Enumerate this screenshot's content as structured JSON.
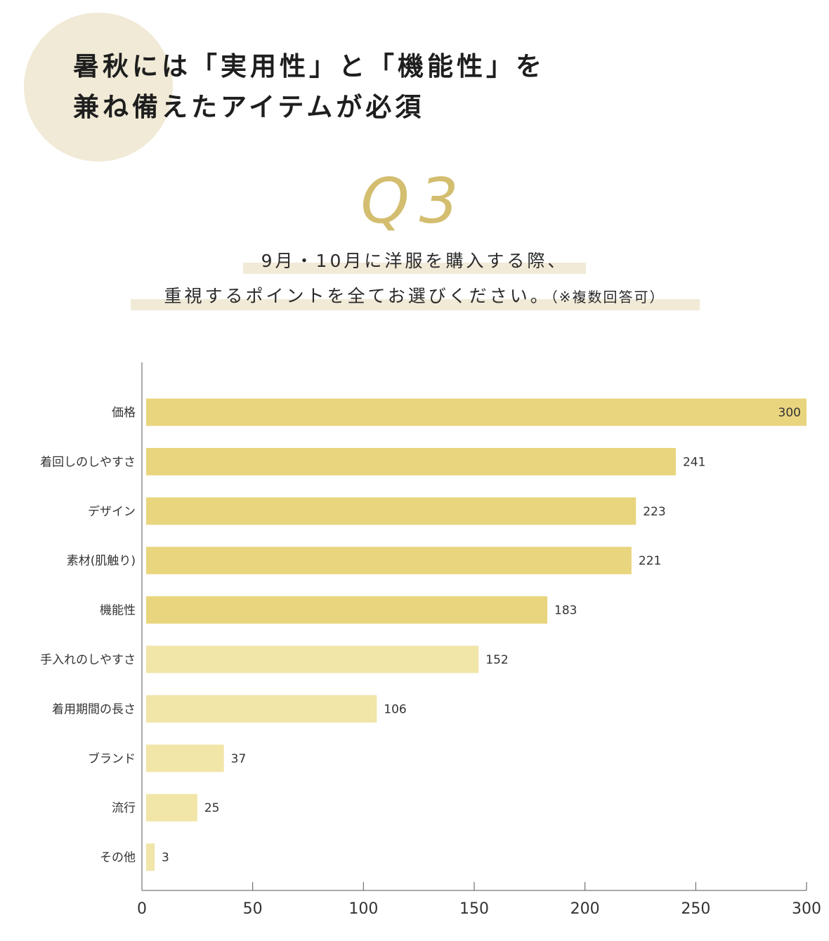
{
  "headline": {
    "line1": "暑秋には「実用性」と「機能性」を",
    "line2": "兼ね備えたアイテムが必須"
  },
  "question": {
    "number": "Q3",
    "line1": "9月・10月に洋服を購入する際、",
    "line2": "重視するポイントを全てお選びください。",
    "note": "（※複数回答可）"
  },
  "colors": {
    "accent": "#d3be70",
    "circle": "#f0ead6",
    "highlight": "#f1ead7",
    "bar_strong": "#e8d57e",
    "bar_light": "#f1e5a8"
  },
  "chart_data": {
    "type": "bar",
    "orientation": "horizontal",
    "categories": [
      "価格",
      "着回しのしやすさ",
      "デザイン",
      "素材(肌触り)",
      "機能性",
      "手入れのしやすさ",
      "着用期間の長さ",
      "ブランド",
      "流行",
      "その他"
    ],
    "values": [
      300,
      241,
      223,
      221,
      183,
      152,
      106,
      37,
      25,
      3
    ],
    "value_labels": [
      "300",
      "241",
      "223",
      "221",
      "183",
      "152",
      "106",
      "37",
      "25",
      "3"
    ],
    "xlim": [
      0,
      300
    ],
    "xticks": [
      0,
      50,
      100,
      150,
      200,
      250,
      300
    ],
    "xtick_labels": [
      "0",
      "50",
      "100",
      "150",
      "200",
      "250",
      "300"
    ],
    "grid": false
  }
}
